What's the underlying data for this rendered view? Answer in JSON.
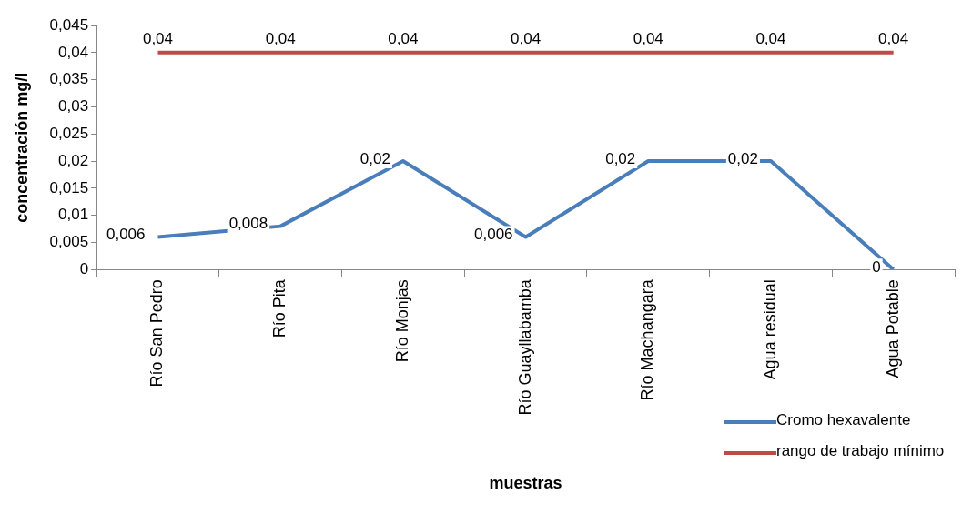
{
  "chart_data": {
    "type": "line",
    "xlabel": "muestras",
    "ylabel": "concentración mg/l",
    "categories": [
      "Río San Pedro",
      "Río Pita",
      "Río Monjas",
      "Río Guayllabamba",
      "Río Machangara",
      "Agua residual",
      "Agua Potable"
    ],
    "series": [
      {
        "name": "Cromo hexavalente",
        "color": "#4a7ebb",
        "values": [
          0.006,
          0.008,
          0.02,
          0.006,
          0.02,
          0.02,
          0
        ],
        "value_labels": [
          "0,006",
          "0,008",
          "0,02",
          "0,006",
          "0,02",
          "0,02",
          "0"
        ]
      },
      {
        "name": "rango de trabajo mínimo",
        "color": "#be4b48",
        "values": [
          0.04,
          0.04,
          0.04,
          0.04,
          0.04,
          0.04,
          0.04
        ],
        "value_labels": [
          "0,04",
          "0,04",
          "0,04",
          "0,04",
          "0,04",
          "0,04",
          "0,04"
        ]
      }
    ],
    "ylim": [
      0,
      0.045
    ],
    "yticks": [
      {
        "value": 0,
        "label": "0"
      },
      {
        "value": 0.005,
        "label": "0,005"
      },
      {
        "value": 0.01,
        "label": "0,01"
      },
      {
        "value": 0.015,
        "label": "0,015"
      },
      {
        "value": 0.02,
        "label": "0,02"
      },
      {
        "value": 0.025,
        "label": "0,025"
      },
      {
        "value": 0.03,
        "label": "0,03"
      },
      {
        "value": 0.035,
        "label": "0,035"
      },
      {
        "value": 0.04,
        "label": "0,04"
      },
      {
        "value": 0.045,
        "label": "0,045"
      }
    ],
    "marker": "none",
    "legend": "bottom right"
  }
}
